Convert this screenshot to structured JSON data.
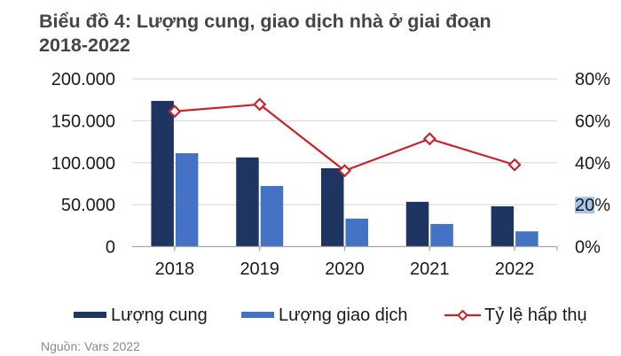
{
  "title": "Biểu đồ 4: Lượng cung, giao dịch nhà ở giai đoạn 2018-2022",
  "title_line1": "Biểu đồ 4: Lượng cung, giao dịch nhà ở giai đoạn",
  "title_line2": "2018-2022",
  "source": "Nguồn: Vars 2022",
  "colors": {
    "supply": "#1f3561",
    "transactions": "#4472c4",
    "absorption": "#c8232a",
    "grid": "#dcdce2",
    "axis": "#a6a6a6"
  },
  "legend": [
    {
      "label": "Lượng cung",
      "type": "bar"
    },
    {
      "label": "Lượng giao dịch",
      "type": "bar"
    },
    {
      "label": "Tỷ lệ hấp thụ",
      "type": "line"
    }
  ],
  "left_axis_ticks": [
    "0",
    "50.000",
    "100.000",
    "150.000",
    "200.000"
  ],
  "right_axis_ticks": [
    "0%",
    "20%",
    "40%",
    "60%",
    "80%"
  ],
  "chart_data": {
    "type": "bar",
    "title": "Biểu đồ 4: Lượng cung, giao dịch nhà ở giai đoạn 2018-2022",
    "xlabel": "",
    "ylabel": "",
    "categories": [
      "2018",
      "2019",
      "2020",
      "2021",
      "2022"
    ],
    "ylim": [
      0,
      200000
    ],
    "y2lim": [
      0,
      0.8
    ],
    "grid": true,
    "legend_position": "bottom",
    "series": [
      {
        "name": "Lượng cung",
        "type": "bar",
        "axis": "left",
        "values": [
          173700,
          106300,
          93400,
          53400,
          48100
        ]
      },
      {
        "name": "Lượng giao dịch",
        "type": "bar",
        "axis": "left",
        "values": [
          111300,
          72300,
          33400,
          27000,
          18200
        ]
      },
      {
        "name": "Tỷ lệ hấp thụ",
        "type": "line",
        "axis": "right",
        "marker": "diamond",
        "values": [
          0.645,
          0.678,
          0.362,
          0.514,
          0.39
        ]
      }
    ]
  }
}
